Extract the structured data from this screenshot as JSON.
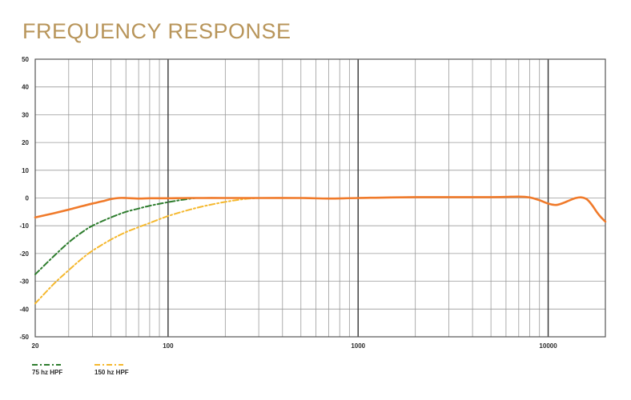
{
  "title": "FREQUENCY RESPONSE",
  "title_color": "#b8955a",
  "chart_data": {
    "type": "line",
    "title": "FREQUENCY RESPONSE",
    "xscale": "log",
    "xlim": [
      20,
      20000
    ],
    "ylim": [
      -50,
      50
    ],
    "x_ticks": [
      20,
      100,
      1000,
      10000
    ],
    "x_tick_labels": [
      "20",
      "100",
      "1000",
      "10000"
    ],
    "y_ticks": [
      50,
      40,
      30,
      20,
      10,
      0,
      -10,
      -20,
      -30,
      -40,
      -50
    ],
    "y_tick_labels": [
      "50",
      "40",
      "30",
      "20",
      "10",
      "0",
      "-10",
      "-20",
      "-30",
      "-40",
      "-50"
    ],
    "grid": true,
    "legend_position": "bottom-left",
    "series": [
      {
        "name": "",
        "color": "#f07a2a",
        "style": "solid",
        "x": [
          20,
          25,
          30,
          35,
          40,
          45,
          50,
          55,
          60,
          70,
          80,
          100,
          130,
          200,
          300,
          500,
          700,
          1000,
          2000,
          5000,
          7000,
          8000,
          9000,
          10000,
          11000,
          12000,
          13000,
          14000,
          15000,
          16000,
          17000,
          18000,
          19000,
          20000
        ],
        "y": [
          -7,
          -5.5,
          -4.2,
          -3,
          -2,
          -1.2,
          -0.4,
          0,
          0,
          -0.2,
          -0.1,
          -0.1,
          0,
          0,
          0,
          0,
          -0.2,
          0,
          0.3,
          0.3,
          0.5,
          0.2,
          -0.8,
          -2,
          -2.5,
          -1.8,
          -0.8,
          0,
          0.2,
          -0.5,
          -2.5,
          -5,
          -7,
          -8.5
        ]
      },
      {
        "name": "75 hz HPF",
        "color": "#2e7d2e",
        "style": "dashdot",
        "x": [
          20,
          25,
          30,
          35,
          40,
          50,
          60,
          70,
          80,
          100,
          120,
          140
        ],
        "y": [
          -27.5,
          -21,
          -16,
          -12.5,
          -10,
          -7,
          -5,
          -3.8,
          -2.8,
          -1.5,
          -0.6,
          0
        ]
      },
      {
        "name": "150 hz HPF",
        "color": "#f5b82e",
        "style": "dashdot",
        "x": [
          20,
          25,
          30,
          35,
          40,
          50,
          60,
          70,
          80,
          100,
          130,
          160,
          200,
          250,
          300
        ],
        "y": [
          -38,
          -31,
          -26,
          -22,
          -19,
          -15,
          -12.3,
          -10.5,
          -9,
          -6.5,
          -4.2,
          -2.7,
          -1.4,
          -0.4,
          0
        ]
      }
    ]
  }
}
